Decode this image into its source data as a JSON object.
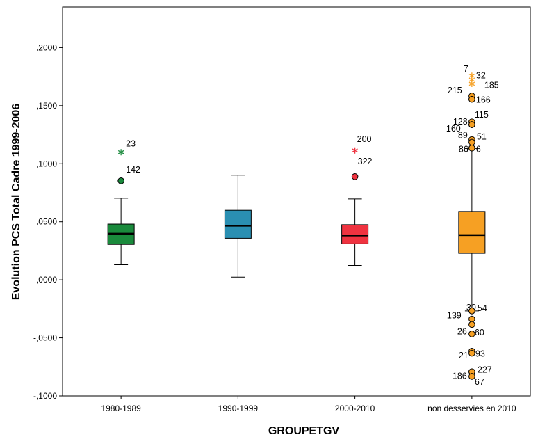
{
  "chart_data": {
    "type": "boxplot",
    "title": "",
    "xlabel": "GROUPETGV",
    "ylabel": "Evolution PCS Total Cadre 1999-2006",
    "ylim": [
      -0.1,
      0.235
    ],
    "yticks": [
      -0.1,
      -0.05,
      0.0,
      0.05,
      0.1,
      0.15,
      0.2
    ],
    "ytick_labels": [
      "-,1000",
      "-,0500",
      ",0000",
      ",0500",
      ",1000",
      ",1500",
      ",2000"
    ],
    "grid": false,
    "categories": [
      "1980-1989",
      "1990-1999",
      "2000-2010",
      "non desservies en 2010"
    ],
    "colors": {
      "1980-1989": "#1a8a3c",
      "1990-1999": "#2a8fb2",
      "2000-2010": "#ef3340",
      "non desservies en 2010": "#f6a023"
    },
    "boxes": [
      {
        "category": "1980-1989",
        "whisker_low": 0.013,
        "q1": 0.0305,
        "median": 0.0397,
        "q3": 0.048,
        "whisker_high": 0.0703,
        "outliers": [
          {
            "label": "23",
            "y": 0.1099,
            "marker": "star"
          },
          {
            "label": "142",
            "y": 0.0853,
            "marker": "circle"
          }
        ]
      },
      {
        "category": "1990-1999",
        "whisker_low": 0.0023,
        "q1": 0.0358,
        "median": 0.0466,
        "q3": 0.0599,
        "whisker_high": 0.0901,
        "outliers": []
      },
      {
        "category": "2000-2010",
        "whisker_low": 0.0124,
        "q1": 0.031,
        "median": 0.0382,
        "q3": 0.0475,
        "whisker_high": 0.0697,
        "outliers": [
          {
            "label": "200",
            "y": 0.1114,
            "marker": "star"
          },
          {
            "label": "322",
            "y": 0.0889,
            "marker": "circle"
          }
        ]
      },
      {
        "category": "non desservies en 2010",
        "whisker_low": -0.0268,
        "q1": 0.0228,
        "median": 0.0385,
        "q3": 0.0589,
        "whisker_high": 0.1131,
        "outliers": [
          {
            "label": "7",
            "y": 0.1758,
            "marker": "star"
          },
          {
            "label": "32",
            "y": 0.1723,
            "marker": "star"
          },
          {
            "label": "185",
            "y": 0.1688,
            "marker": "star"
          },
          {
            "label": "215",
            "y": 0.1583,
            "marker": "circle"
          },
          {
            "label": "166",
            "y": 0.1555,
            "marker": "circle"
          },
          {
            "label": "160",
            "y": 0.136,
            "marker": "circle"
          },
          {
            "label": "128",
            "y": 0.1337,
            "marker": "circle"
          },
          {
            "label": "115",
            "y": 0.1337,
            "marker": "circle"
          },
          {
            "label": "89",
            "y": 0.1208,
            "marker": "circle"
          },
          {
            "label": "51",
            "y": 0.1185,
            "marker": "circle"
          },
          {
            "label": "86",
            "y": 0.1135,
            "marker": "circle"
          },
          {
            "label": "6",
            "y": 0.1135,
            "marker": "circle"
          },
          {
            "label": "30",
            "y": -0.0268,
            "marker": "circle"
          },
          {
            "label": "54",
            "y": -0.0268,
            "marker": "circle"
          },
          {
            "label": "139",
            "y": -0.0338,
            "marker": "circle"
          },
          {
            "label": "26",
            "y": -0.0385,
            "marker": "circle"
          },
          {
            "label": "60",
            "y": -0.0466,
            "marker": "circle"
          },
          {
            "label": "21",
            "y": -0.0615,
            "marker": "circle"
          },
          {
            "label": "93",
            "y": -0.0632,
            "marker": "circle"
          },
          {
            "label": "186",
            "y": -0.0792,
            "marker": "circle"
          },
          {
            "label": "227",
            "y": -0.0792,
            "marker": "circle"
          },
          {
            "label": "67",
            "y": -0.0832,
            "marker": "circle"
          }
        ]
      }
    ]
  }
}
